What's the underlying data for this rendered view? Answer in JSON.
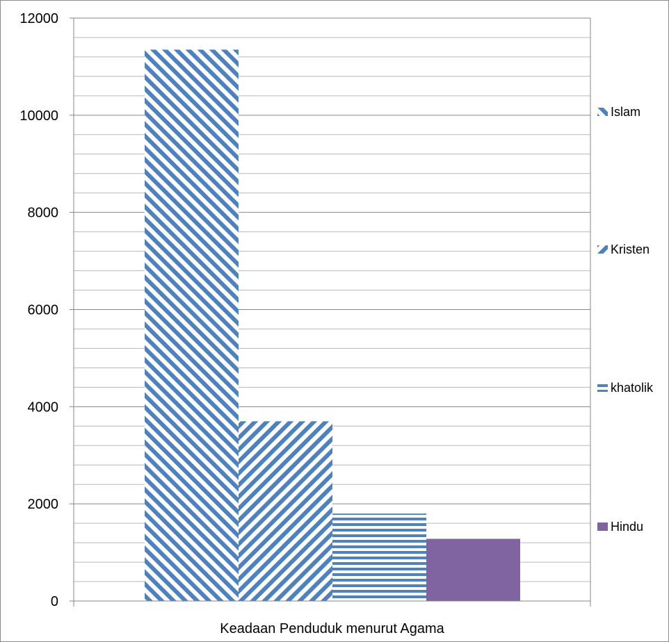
{
  "chart_data": {
    "type": "bar",
    "title": "",
    "xlabel": "",
    "ylabel": "",
    "categories": [
      "Keadaan Penduduk menurut Agama"
    ],
    "series": [
      {
        "name": "Islam",
        "values": [
          11350
        ],
        "pattern": "diag-down",
        "color": "#4f81bd"
      },
      {
        "name": "Kristen",
        "values": [
          3700
        ],
        "pattern": "diag-up",
        "color": "#4f81bd"
      },
      {
        "name": "khatolik",
        "values": [
          1800
        ],
        "pattern": "horizontal",
        "color": "#4f81bd"
      },
      {
        "name": "Hindu",
        "values": [
          1280
        ],
        "pattern": "solid",
        "color": "#8064a2"
      }
    ],
    "ylim": [
      0,
      12000
    ],
    "yticks": [
      "0",
      "2000",
      "4000",
      "6000",
      "8000",
      "10000",
      "12000"
    ],
    "grid": true,
    "legend_position": "right"
  }
}
